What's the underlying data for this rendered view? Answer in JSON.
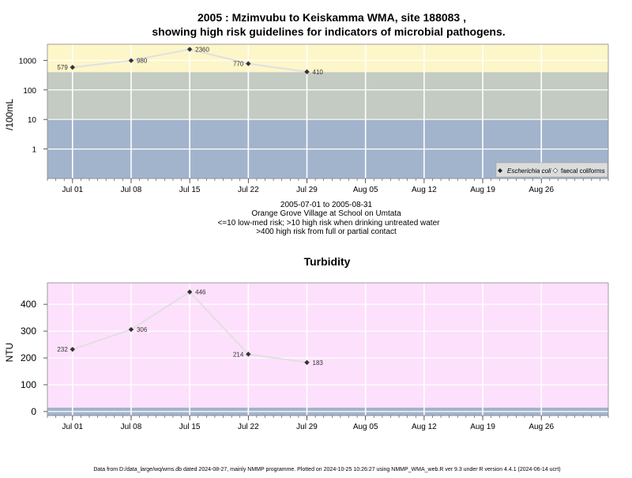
{
  "header": {
    "title_line1": "2005 : Mzimvubu to Keiskamma WMA, site 188083 ,",
    "title_line2": "showing high risk guidelines for indicators of microbial pathogens."
  },
  "info": {
    "date_range": "2005-07-01 to 2005-08-31",
    "location": "Orange Grove Village at School on Umtata",
    "risk_note1": "<=10 low-med risk; >10 high risk when drinking untreated water",
    "risk_note2": ">400 high risk from full or partial contact"
  },
  "turbidity_title": "Turbidity",
  "footer": "Data from D:/data_large/wq/wms.db dated 2024-08-27, mainly NMMP programme. Plotted on 2024-10-25 10:26:27 using NMMP_WMA_web.R ver 9.3 under R version 4.4.1 (2024-06-14 ucrt)",
  "colors": {
    "band_low": "#a2b4cc",
    "band_mid": "#c3cbc2",
    "band_high": "#fdf6c8",
    "turbidity_bg": "#fde0fb",
    "turbidity_base_band": "#a2b4cc",
    "line": "#e0e0e0",
    "point": "#333333"
  },
  "chart_data": [
    {
      "type": "line",
      "title": "2005 : Mzimvubu to Keiskamma WMA, site 188083 , showing high risk guidelines for indicators of microbial pathogens.",
      "ylabel": "/100mL",
      "y_scale": "log",
      "ylim": [
        0.1,
        3500
      ],
      "yticks": [
        1,
        10,
        100,
        1000
      ],
      "ytick_labels": [
        "1",
        "10",
        "100",
        "1000"
      ],
      "xlim": [
        "2005-06-28",
        "2005-09-03"
      ],
      "xticks": [
        "2005-07-01",
        "2005-07-08",
        "2005-07-15",
        "2005-07-22",
        "2005-07-29",
        "2005-08-05",
        "2005-08-12",
        "2005-08-19",
        "2005-08-26"
      ],
      "xtick_labels": [
        "Jul 01",
        "Jul 08",
        "Jul 15",
        "Jul 22",
        "Jul 29",
        "Aug 05",
        "Aug 12",
        "Aug 19",
        "Aug 26"
      ],
      "bands": [
        {
          "from": 0.1,
          "to": 10,
          "color": "#a2b4cc"
        },
        {
          "from": 10,
          "to": 400,
          "color": "#c3cbc2"
        },
        {
          "from": 400,
          "to": 3500,
          "color": "#fdf6c8"
        }
      ],
      "legend": {
        "placement": "bottom-right",
        "entries": [
          "Escherichia coli",
          "faecal coliforms"
        ]
      },
      "grid": true,
      "series": [
        {
          "name": "Escherichia coli",
          "x": [
            "2005-07-01",
            "2005-07-08",
            "2005-07-15",
            "2005-07-22",
            "2005-07-29"
          ],
          "values": [
            579,
            980,
            2360,
            770,
            410
          ],
          "labels": [
            "579",
            "980",
            "2360",
            "770",
            "410"
          ],
          "label_side": [
            "left",
            "right",
            "right",
            "left",
            "right"
          ]
        }
      ]
    },
    {
      "type": "line",
      "title": "Turbidity",
      "ylabel": "NTU",
      "ylim": [
        -15,
        480
      ],
      "yticks": [
        0,
        100,
        200,
        300,
        400
      ],
      "ytick_labels": [
        "0",
        "100",
        "200",
        "300",
        "400"
      ],
      "xlim": [
        "2005-06-28",
        "2005-09-03"
      ],
      "xticks": [
        "2005-07-01",
        "2005-07-08",
        "2005-07-15",
        "2005-07-22",
        "2005-07-29",
        "2005-08-05",
        "2005-08-12",
        "2005-08-19",
        "2005-08-26"
      ],
      "xtick_labels": [
        "Jul 01",
        "Jul 08",
        "Jul 15",
        "Jul 22",
        "Jul 29",
        "Aug 05",
        "Aug 12",
        "Aug 19",
        "Aug 26"
      ],
      "bands": [
        {
          "from": -15,
          "to": 15,
          "color": "#a2b4cc"
        },
        {
          "from": 15,
          "to": 480,
          "color": "#fde0fb"
        }
      ],
      "grid": true,
      "series": [
        {
          "x": [
            "2005-07-01",
            "2005-07-08",
            "2005-07-15",
            "2005-07-22",
            "2005-07-29"
          ],
          "values": [
            232,
            306,
            446,
            214,
            183
          ],
          "labels": [
            "232",
            "306",
            "446",
            "214",
            "183"
          ],
          "label_side": [
            "left",
            "right",
            "right",
            "left",
            "right"
          ]
        }
      ]
    }
  ]
}
